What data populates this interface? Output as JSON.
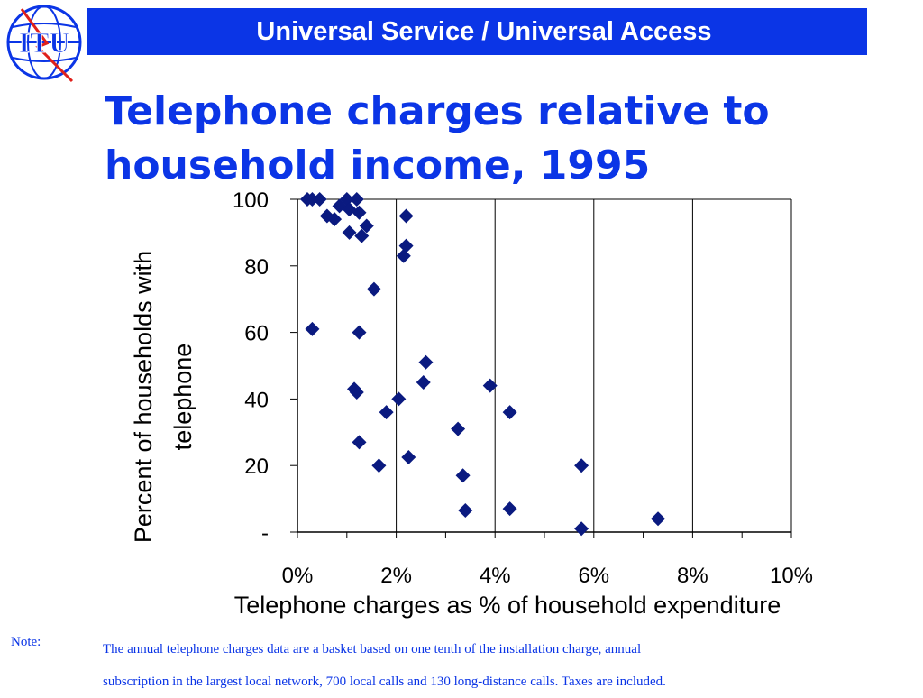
{
  "header": {
    "title": "Universal Service / Universal Access",
    "logo_text": "ITU",
    "colors": {
      "bar": "#0b35e6",
      "title_text": "#ffffff",
      "logo": "#0b35e6",
      "logo_accent": "#e0201b"
    }
  },
  "slide": {
    "title_line1": "Telephone charges relative to",
    "title_line2": "household income, 1995",
    "title_color": "#0b35e6"
  },
  "chart_data": {
    "type": "scatter",
    "xlabel": "Telephone charges as % of household expenditure",
    "ylabel_line1": "Percent of households with",
    "ylabel_line2": "telephone",
    "xlim": [
      0,
      10
    ],
    "ylim": [
      0,
      100
    ],
    "x_ticks": [
      0,
      2,
      4,
      6,
      8,
      10
    ],
    "x_tick_labels": [
      "0%",
      "2%",
      "4%",
      "6%",
      "8%",
      "10%"
    ],
    "y_ticks": [
      0,
      20,
      40,
      60,
      80,
      100
    ],
    "y_tick_labels": [
      "-",
      "20",
      "40",
      "60",
      "80",
      "100"
    ],
    "grid": true,
    "marker": "diamond",
    "marker_color": "#0a1a80",
    "points": [
      {
        "x": 0.2,
        "y": 100
      },
      {
        "x": 0.3,
        "y": 100
      },
      {
        "x": 0.45,
        "y": 100
      },
      {
        "x": 1.0,
        "y": 100
      },
      {
        "x": 1.2,
        "y": 100
      },
      {
        "x": 0.85,
        "y": 98
      },
      {
        "x": 1.05,
        "y": 97
      },
      {
        "x": 1.25,
        "y": 96
      },
      {
        "x": 0.6,
        "y": 95
      },
      {
        "x": 0.75,
        "y": 94
      },
      {
        "x": 2.2,
        "y": 95
      },
      {
        "x": 1.4,
        "y": 92
      },
      {
        "x": 1.05,
        "y": 90
      },
      {
        "x": 1.3,
        "y": 89
      },
      {
        "x": 2.2,
        "y": 86
      },
      {
        "x": 2.15,
        "y": 83
      },
      {
        "x": 1.55,
        "y": 73
      },
      {
        "x": 0.3,
        "y": 61
      },
      {
        "x": 1.25,
        "y": 60
      },
      {
        "x": 2.6,
        "y": 51
      },
      {
        "x": 2.55,
        "y": 45
      },
      {
        "x": 3.9,
        "y": 44
      },
      {
        "x": 1.15,
        "y": 43
      },
      {
        "x": 1.2,
        "y": 42
      },
      {
        "x": 2.05,
        "y": 40
      },
      {
        "x": 1.8,
        "y": 36
      },
      {
        "x": 4.3,
        "y": 36
      },
      {
        "x": 3.25,
        "y": 31
      },
      {
        "x": 1.25,
        "y": 27
      },
      {
        "x": 2.25,
        "y": 22.5
      },
      {
        "x": 1.65,
        "y": 20
      },
      {
        "x": 5.75,
        "y": 20
      },
      {
        "x": 3.35,
        "y": 17
      },
      {
        "x": 3.4,
        "y": 6.5
      },
      {
        "x": 4.3,
        "y": 7
      },
      {
        "x": 7.3,
        "y": 4
      },
      {
        "x": 5.75,
        "y": 1
      }
    ]
  },
  "note": {
    "label": "Note:",
    "line1": "The annual telephone charges data are a basket based on one tenth of the installation charge, annual",
    "line2": "subscription in the largest local network, 700 local calls and 130 long-distance calls. Taxes are included."
  }
}
